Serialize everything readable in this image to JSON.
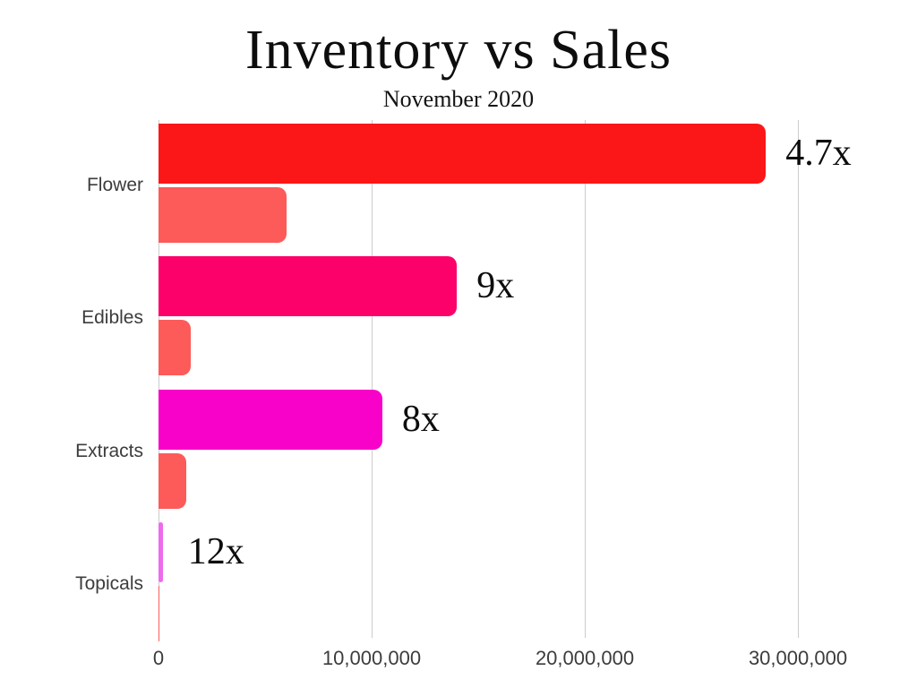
{
  "chart_data": {
    "type": "bar",
    "orientation": "horizontal",
    "title": "Inventory vs Sales",
    "subtitle": "November 2020",
    "categories": [
      "Flower",
      "Edibles",
      "Extracts",
      "Topicals"
    ],
    "series": [
      {
        "name": "Inventory",
        "values": [
          28500000,
          14000000,
          10500000,
          200000
        ],
        "colors": [
          "#fb1617",
          "#fb0169",
          "#f801c8",
          "#ee6bee"
        ]
      },
      {
        "name": "Sales",
        "values": [
          6000000,
          1500000,
          1300000,
          17000
        ],
        "colors": [
          "#fc5b5a",
          "#fc5b5a",
          "#fc5b5a",
          "#fc5b5a"
        ]
      }
    ],
    "ratio_labels": [
      "4.7x",
      "9x",
      "8x",
      "12x"
    ],
    "x_ticks": [
      0,
      10000000,
      20000000,
      30000000
    ],
    "x_tick_labels": [
      "0",
      "10,000,000",
      "20,000,000",
      "30,000,000"
    ],
    "xlim": [
      0,
      33000000
    ],
    "ylabel": "",
    "xlabel": "",
    "grid": true,
    "legend_position": "none",
    "colors": {
      "gridline": "#cccccc",
      "axis_text": "#3c3c3c",
      "title_text": "#0d0d0d"
    }
  }
}
